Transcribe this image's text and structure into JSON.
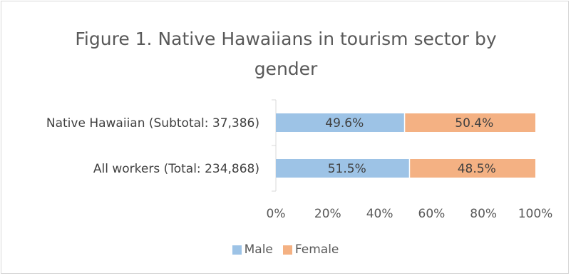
{
  "chart_data": {
    "type": "bar",
    "orientation": "horizontal",
    "stacked": "percent",
    "title": "Figure 1. Native Hawaiians in tourism sector by gender",
    "categories": [
      "Native Hawaiian (Subtotal: 37,386)",
      "All workers (Total: 234,868)"
    ],
    "series": [
      {
        "name": "Male",
        "values": [
          49.6,
          51.5
        ],
        "labels": [
          "49.6%",
          "51.5%"
        ],
        "color": "#9dc3e6"
      },
      {
        "name": "Female",
        "values": [
          50.4,
          48.5
        ],
        "labels": [
          "50.4%",
          "48.5%"
        ],
        "color": "#f4b183"
      }
    ],
    "xlim": [
      0,
      100
    ],
    "xticks": [
      "0%",
      "20%",
      "40%",
      "60%",
      "80%",
      "100%"
    ],
    "grid": false,
    "legend_position": "bottom"
  }
}
